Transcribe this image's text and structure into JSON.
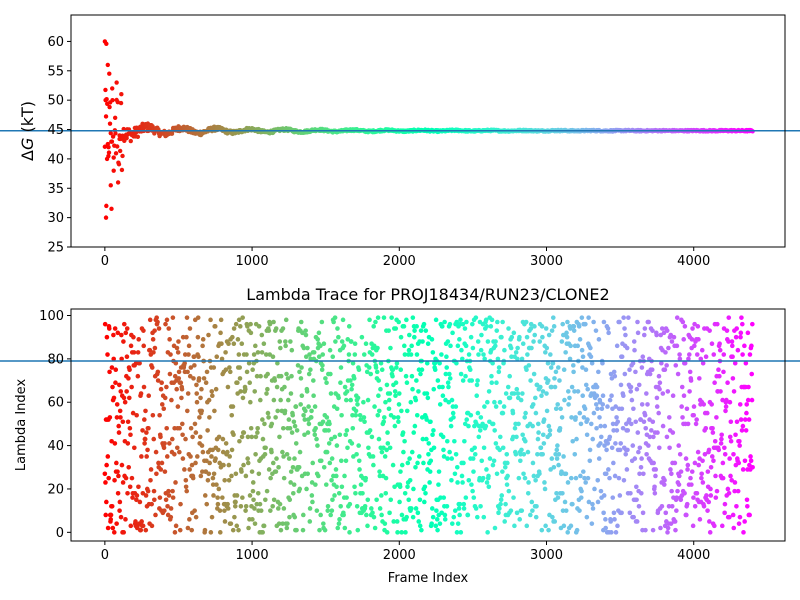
{
  "chart_data": [
    {
      "type": "scatter",
      "title": "",
      "xlabel": "",
      "ylabel_prefix": "Δ",
      "ylabel_symbol": "G",
      "ylabel_suffix": " (kT)",
      "xlim": [
        -230,
        4620
      ],
      "ylim": [
        25,
        64.5
      ],
      "xticks": [
        0,
        1000,
        2000,
        3000,
        4000
      ],
      "xtick_labels": [
        "0",
        "1000",
        "2000",
        "3000",
        "4000"
      ],
      "yticks": [
        25,
        30,
        35,
        40,
        45,
        50,
        55,
        60
      ],
      "ytick_labels": [
        "25",
        "30",
        "35",
        "40",
        "45",
        "50",
        "55",
        "60"
      ],
      "hline_y": 44.8,
      "hline_color": "#1f77b4",
      "colormap": "rainbow (reversed: red at frame 0, violet at last frame)",
      "grid": false,
      "legend": "none",
      "series": [
        {
          "description": "running free energy estimate, one point per frame",
          "x_range": [
            0,
            4400
          ],
          "early_points": [
            {
              "x": 0,
              "y": 60.0
            },
            {
              "x": 10,
              "y": 59.6
            },
            {
              "x": 8,
              "y": 30.0
            },
            {
              "x": 10,
              "y": 32.0
            },
            {
              "x": 20,
              "y": 56.0
            },
            {
              "x": 30,
              "y": 54.5
            },
            {
              "x": 40,
              "y": 35.5
            },
            {
              "x": 45,
              "y": 31.5
            },
            {
              "x": 5,
              "y": 50.0
            },
            {
              "x": 15,
              "y": 40.0
            },
            {
              "x": 25,
              "y": 42.0
            },
            {
              "x": 35,
              "y": 46.0
            },
            {
              "x": 50,
              "y": 52.0
            },
            {
              "x": 60,
              "y": 38.0
            },
            {
              "x": 70,
              "y": 47.0
            },
            {
              "x": 80,
              "y": 53.0
            },
            {
              "x": 90,
              "y": 36.0
            },
            {
              "x": 100,
              "y": 44.0
            },
            {
              "x": 110,
              "y": 49.5
            },
            {
              "x": 120,
              "y": 40.5
            }
          ],
          "convergence": {
            "start_spread": 6.0,
            "final_value": 44.8
          }
        }
      ]
    },
    {
      "type": "scatter",
      "title": "Lambda Trace for PROJ18434/RUN23/CLONE2",
      "xlabel": "Frame Index",
      "ylabel": "Lambda Index",
      "xlim": [
        -230,
        4620
      ],
      "ylim": [
        -4,
        103
      ],
      "xticks": [
        0,
        1000,
        2000,
        3000,
        4000
      ],
      "xtick_labels": [
        "0",
        "1000",
        "2000",
        "3000",
        "4000"
      ],
      "yticks": [
        0,
        20,
        40,
        60,
        80,
        100
      ],
      "ytick_labels": [
        "0",
        "20",
        "40",
        "60",
        "80",
        "100"
      ],
      "hline_y": 79,
      "hline_color": "#1f77b4",
      "colormap": "rainbow (reversed: red at frame 0, violet at last frame)",
      "grid": false,
      "legend": "none",
      "series": [
        {
          "description": "lambda index visited at each frame",
          "x_range": [
            0,
            4400
          ],
          "y_range": [
            0,
            99
          ],
          "n_points": 4400
        }
      ]
    }
  ]
}
